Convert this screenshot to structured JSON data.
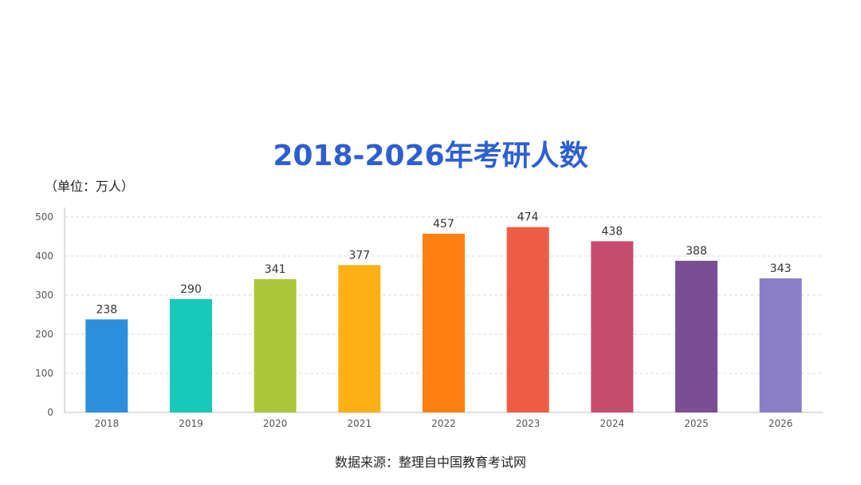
{
  "title": "2018-2026年考研人数",
  "unit_note": "（单位：万人）",
  "source_note": "数据来源：整理自中国教育考试网",
  "chart_data": {
    "type": "bar",
    "categories": [
      "2018",
      "2019",
      "2020",
      "2021",
      "2022",
      "2023",
      "2024",
      "2025",
      "2026"
    ],
    "values": [
      238,
      290,
      341,
      377,
      457,
      474,
      438,
      388,
      343
    ],
    "colors": [
      "#2b8fde",
      "#17c9b8",
      "#abc63a",
      "#fbb116",
      "#fe7f0f",
      "#ee5c45",
      "#c74b6e",
      "#7a4e96",
      "#8a7ec7"
    ],
    "ylim": [
      0,
      500
    ],
    "yticks": [
      0,
      100,
      200,
      300,
      400,
      500
    ],
    "grid": true,
    "data_labels": true
  }
}
